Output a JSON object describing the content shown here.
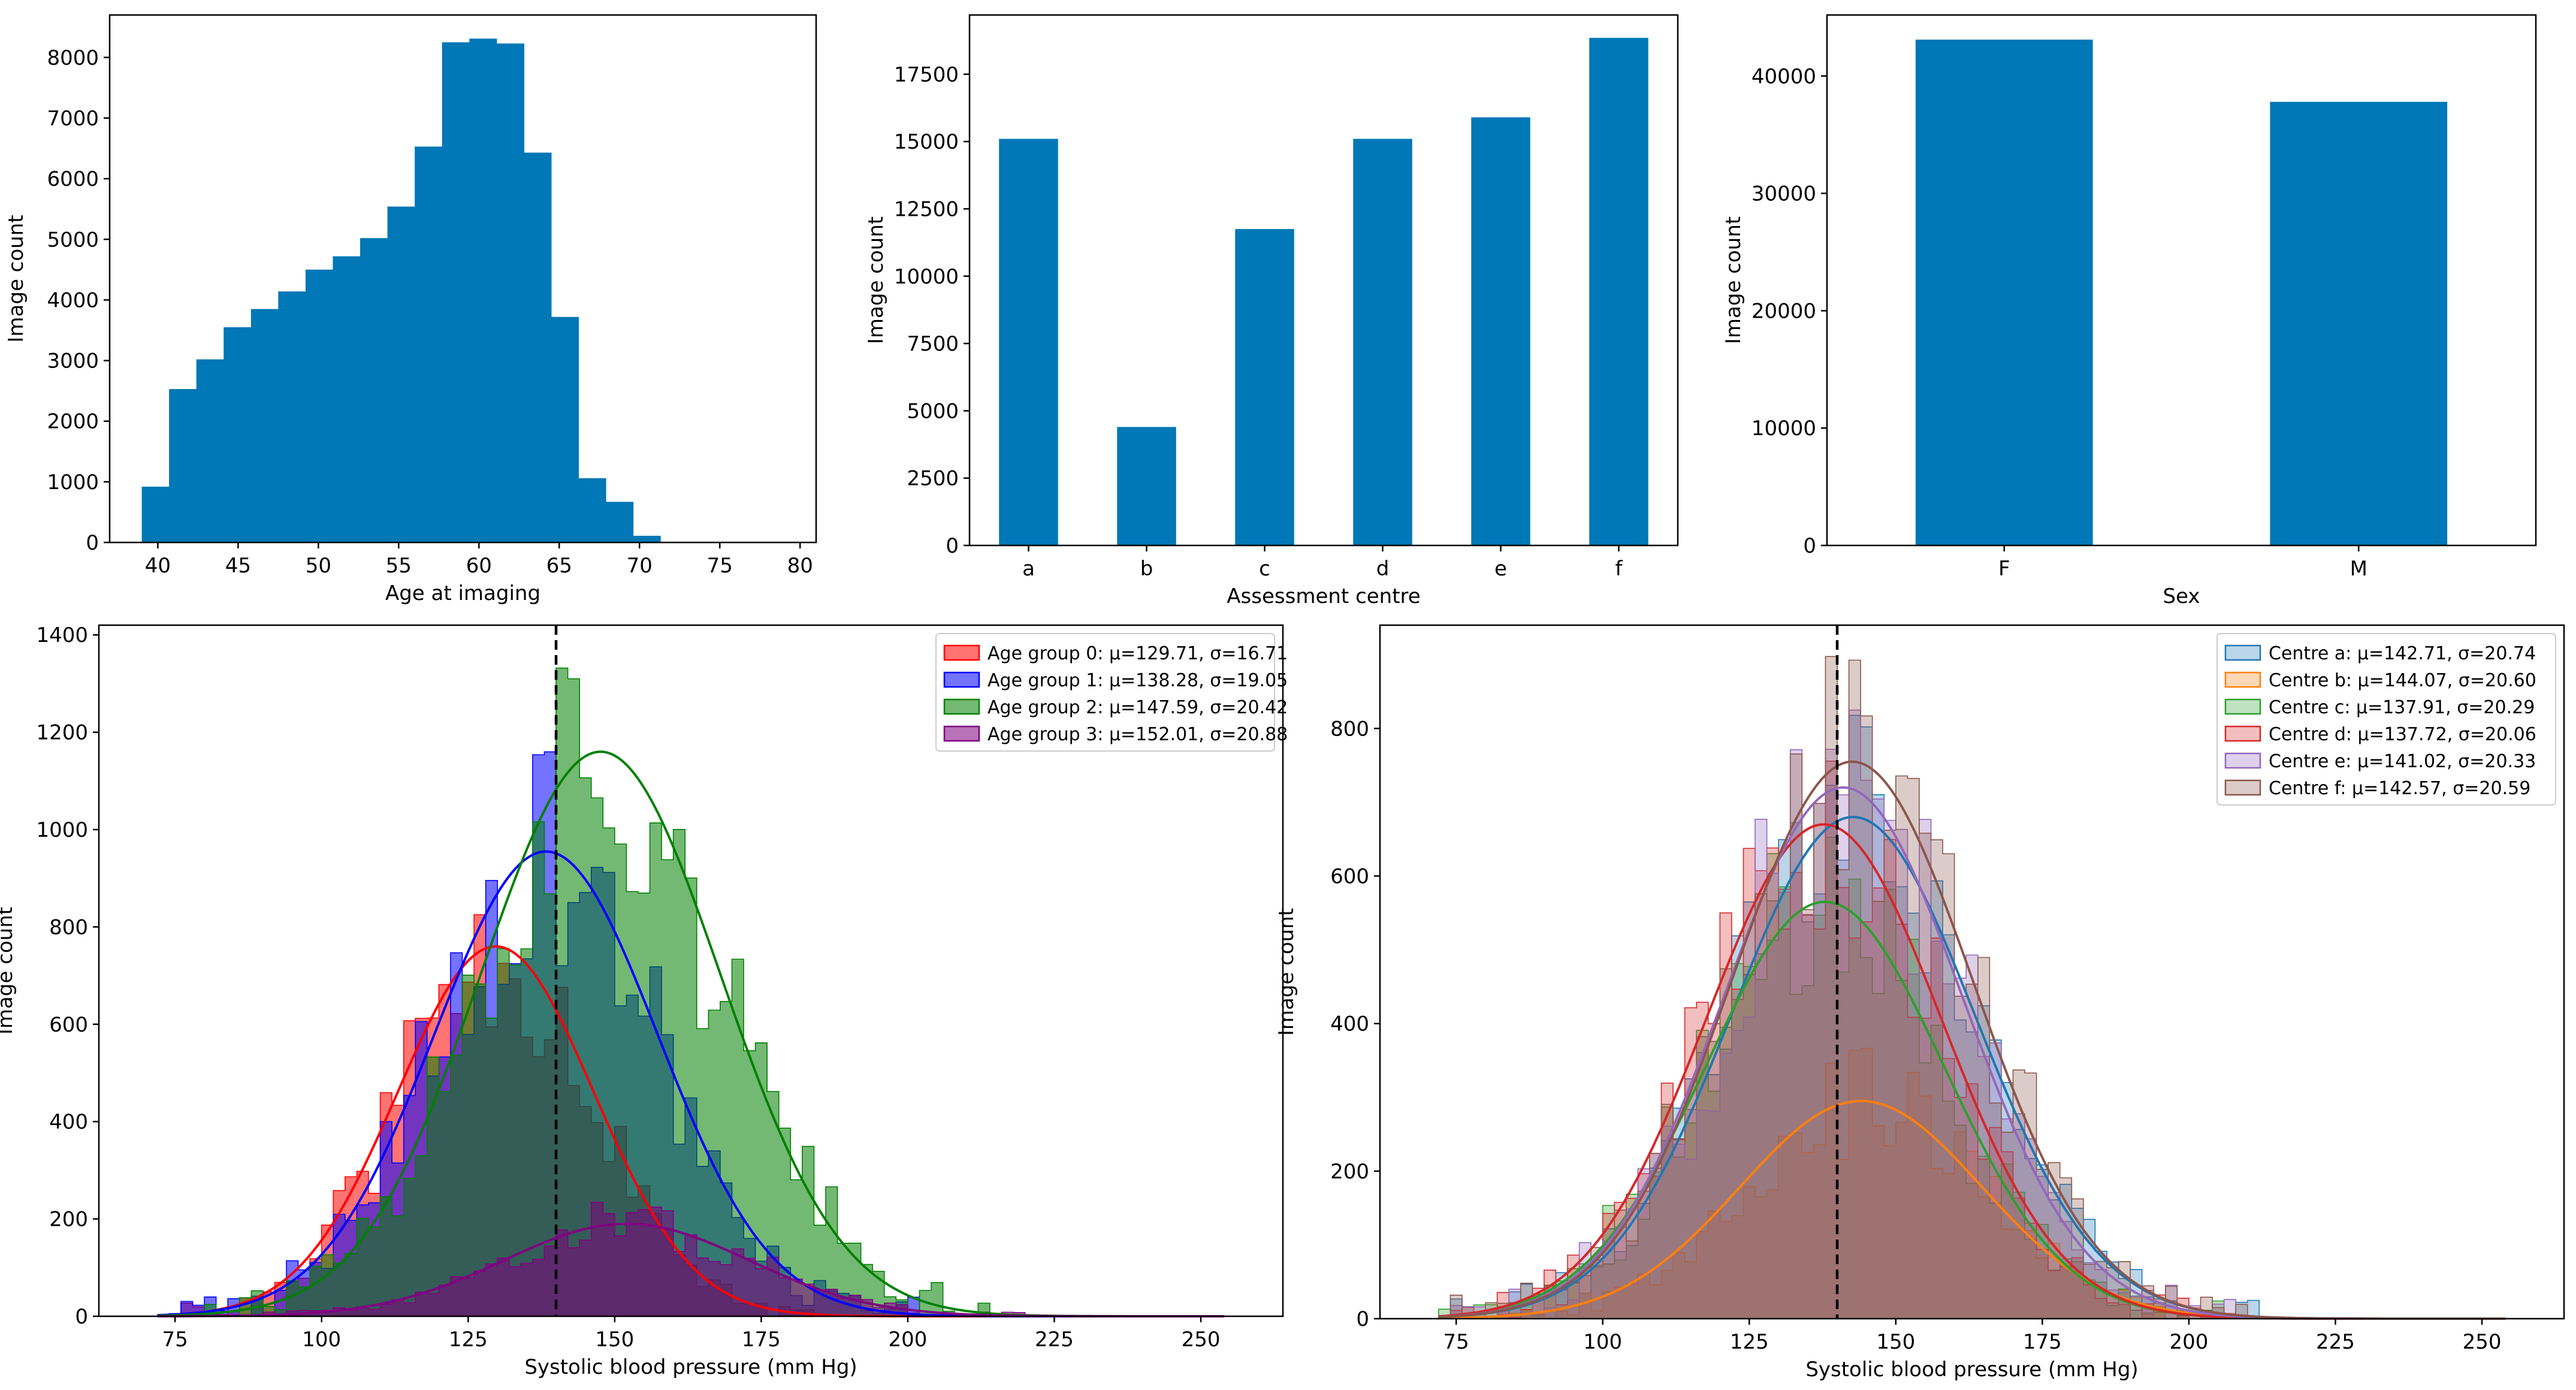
{
  "chart_data": [
    {
      "id": "age",
      "type": "histogram",
      "xlabel": "Age at imaging",
      "ylabel": "Image count",
      "xlim": [
        37.0,
        81.0
      ],
      "ylim": [
        0,
        8700
      ],
      "xticks": [
        40,
        45,
        50,
        55,
        60,
        65,
        70,
        75,
        80
      ],
      "yticks": [
        0,
        1000,
        2000,
        3000,
        4000,
        5000,
        6000,
        7000,
        8000
      ],
      "color": "#0077b6",
      "bin_edges": [
        39.0,
        40.7,
        42.4,
        44.1,
        45.8,
        47.5,
        49.2,
        50.9,
        52.6,
        54.3,
        56.0,
        57.7,
        59.4,
        61.1,
        62.8,
        64.5,
        66.2,
        67.9,
        69.6,
        71.3,
        73.0,
        74.7,
        76.4
      ],
      "counts": [
        920,
        2530,
        3020,
        3550,
        3850,
        4140,
        4500,
        4720,
        5020,
        5540,
        6530,
        8250,
        8310,
        8230,
        6430,
        3720,
        1060,
        670,
        110,
        0,
        0,
        0
      ]
    },
    {
      "id": "centre",
      "type": "bar",
      "xlabel": "Assessment centre",
      "ylabel": "Image count",
      "ylim": [
        0,
        19700
      ],
      "yticks": [
        0,
        2500,
        5000,
        7500,
        10000,
        12500,
        15000,
        17500
      ],
      "categories": [
        "a",
        "b",
        "c",
        "d",
        "e",
        "f"
      ],
      "values": [
        15100,
        4400,
        11750,
        15100,
        15900,
        18850
      ],
      "color": "#0077b6"
    },
    {
      "id": "sex",
      "type": "bar",
      "xlabel": "Sex",
      "ylabel": "Image count",
      "ylim": [
        0,
        45200
      ],
      "yticks": [
        0,
        10000,
        20000,
        30000,
        40000
      ],
      "categories": [
        "F",
        "M"
      ],
      "values": [
        43100,
        37800
      ],
      "color": "#0077b6"
    },
    {
      "id": "sbp_age",
      "type": "histogram_kde",
      "xlabel": "Systolic blood pressure (mm Hg)",
      "ylabel": "Image count",
      "xlim": [
        62,
        264
      ],
      "ylim": [
        0,
        1420
      ],
      "xticks": [
        75,
        100,
        125,
        150,
        175,
        200,
        225,
        250
      ],
      "yticks": [
        0,
        200,
        400,
        600,
        800,
        1000,
        1200,
        1400
      ],
      "vline": 140,
      "bin_range": [
        72,
        254
      ],
      "bin_width": 2,
      "legend_position": "top-right",
      "series": [
        {
          "name": "Age group 0: μ=129.71, σ=16.71",
          "mean": 129.71,
          "sd": 16.71,
          "peak": 760,
          "color": "#ff0000",
          "seed": 11
        },
        {
          "name": "Age group 1: μ=138.28, σ=19.05",
          "mean": 138.28,
          "sd": 19.05,
          "peak": 955,
          "color": "#0000ff",
          "seed": 23
        },
        {
          "name": "Age group 2: μ=147.59, σ=20.42",
          "mean": 147.59,
          "sd": 20.42,
          "peak": 1160,
          "color": "#008000",
          "seed": 37
        },
        {
          "name": "Age group 3: μ=152.01, σ=20.88",
          "mean": 152.01,
          "sd": 20.88,
          "peak": 190,
          "color": "#800080",
          "seed": 51
        }
      ]
    },
    {
      "id": "sbp_centre",
      "type": "histogram_kde",
      "xlabel": "Systolic blood pressure (mm Hg)",
      "ylabel": "Image count",
      "xlim": [
        62,
        264
      ],
      "ylim": [
        0,
        940
      ],
      "xticks": [
        75,
        100,
        125,
        150,
        175,
        200,
        225,
        250
      ],
      "yticks": [
        0,
        200,
        400,
        600,
        800
      ],
      "vline": 140,
      "bin_range": [
        72,
        254
      ],
      "bin_width": 2,
      "legend_position": "top-right",
      "series": [
        {
          "name": "Centre a: μ=142.71, σ=20.74",
          "mean": 142.71,
          "sd": 20.74,
          "peak": 680,
          "color": "#1f77b4",
          "seed": 61
        },
        {
          "name": "Centre b: μ=144.07, σ=20.60",
          "mean": 144.07,
          "sd": 20.6,
          "peak": 295,
          "color": "#ff7f0e",
          "seed": 67
        },
        {
          "name": "Centre c: μ=137.91, σ=20.29",
          "mean": 137.91,
          "sd": 20.29,
          "peak": 565,
          "color": "#2ca02c",
          "seed": 71
        },
        {
          "name": "Centre d: μ=137.72, σ=20.06",
          "mean": 137.72,
          "sd": 20.06,
          "peak": 670,
          "color": "#d62728",
          "seed": 79
        },
        {
          "name": "Centre e: μ=141.02, σ=20.33",
          "mean": 141.02,
          "sd": 20.33,
          "peak": 720,
          "color": "#9467bd",
          "seed": 83
        },
        {
          "name": "Centre f: μ=142.57, σ=20.59",
          "mean": 142.57,
          "sd": 20.59,
          "peak": 755,
          "color": "#8c564b",
          "seed": 89
        }
      ]
    }
  ]
}
